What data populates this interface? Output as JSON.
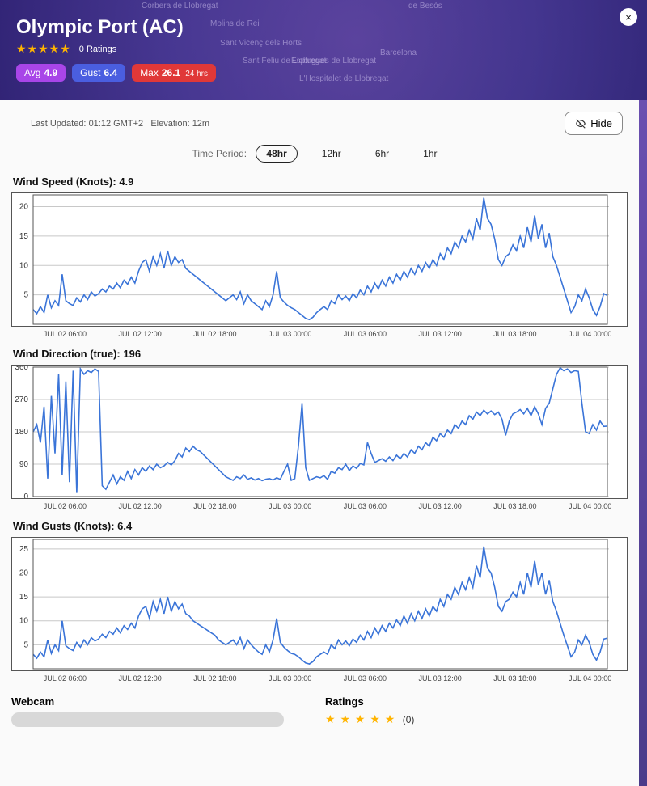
{
  "header": {
    "title": "Olympic Port (AC)",
    "ratings_label": "0 Ratings",
    "stars": 5,
    "close_icon": "×",
    "map_places": [
      "Corbera de Llobregat",
      "Molins de Rei",
      "de Besòs",
      "Sant Vicenç dels Horts",
      "Sant Feliu de Llobregat",
      "Esplugues de Llobregat",
      "Barcelona",
      "L'Hospitalet de Llobregat"
    ],
    "badges": {
      "avg": {
        "label": "Avg",
        "value": "4.9"
      },
      "gust": {
        "label": "Gust",
        "value": "6.4"
      },
      "max": {
        "label": "Max",
        "value": "26.1",
        "suffix": "24 hrs"
      }
    }
  },
  "meta": {
    "last_updated_label": "Last Updated:",
    "last_updated": "01:12 GMT+2",
    "elevation_label": "Elevation:",
    "elevation": "12m",
    "hide_label": "Hide"
  },
  "time_period": {
    "label": "Time Period:",
    "options": [
      "48hr",
      "12hr",
      "6hr",
      "1hr"
    ],
    "active": "48hr"
  },
  "x_axis": {
    "labels": [
      "JUL 02 06:00",
      "JUL 02 12:00",
      "JUL 02 18:00",
      "JUL 03 00:00",
      "JUL 03 06:00",
      "JUL 03 12:00",
      "JUL 03 18:00",
      "JUL 04 00:00"
    ]
  },
  "charts": {
    "line_color": "#3a74d8",
    "grid_color": "#c8c8c8",
    "border_color": "#555555",
    "bg_color": "#ffffff",
    "label_fontsize": 10,
    "title_fontsize": 13,
    "speed": {
      "title": "Wind Speed (Knots): 4.9",
      "ylim": [
        0,
        22
      ],
      "yticks": [
        5,
        10,
        15,
        20
      ],
      "height": 164,
      "data": [
        2.5,
        1.8,
        3.0,
        2.0,
        5.0,
        2.8,
        4.0,
        3.2,
        8.5,
        4.0,
        3.5,
        3.2,
        4.5,
        3.8,
        5.0,
        4.2,
        5.5,
        4.8,
        5.2,
        6.0,
        5.5,
        6.5,
        6.0,
        7.0,
        6.2,
        7.5,
        6.8,
        8.0,
        7.0,
        9.0,
        10.5,
        11.0,
        9.0,
        11.5,
        10.0,
        12.0,
        9.5,
        12.5,
        10.0,
        11.5,
        10.5,
        11.0,
        9.5,
        9.0,
        8.5,
        8.0,
        7.5,
        7.0,
        6.5,
        6.0,
        5.5,
        5.0,
        4.5,
        4.0,
        4.5,
        5.0,
        4.2,
        5.5,
        3.5,
        5.0,
        4.0,
        3.5,
        3.0,
        2.5,
        4.0,
        3.0,
        5.0,
        9.0,
        4.5,
        3.8,
        3.2,
        2.8,
        2.5,
        2.0,
        1.5,
        1.0,
        0.8,
        1.2,
        2.0,
        2.5,
        3.0,
        2.5,
        4.0,
        3.5,
        5.0,
        4.2,
        4.8,
        4.0,
        5.2,
        4.5,
        5.8,
        5.0,
        6.5,
        5.5,
        7.0,
        6.0,
        7.5,
        6.5,
        8.0,
        7.0,
        8.5,
        7.5,
        9.0,
        8.0,
        9.5,
        8.5,
        10.0,
        9.0,
        10.5,
        9.5,
        11.0,
        10.0,
        12.0,
        11.0,
        13.0,
        12.0,
        14.0,
        13.0,
        15.0,
        14.0,
        16.0,
        14.5,
        18.0,
        16.0,
        21.5,
        18.0,
        17.0,
        14.5,
        11.0,
        10.0,
        11.5,
        12.0,
        13.5,
        12.5,
        15.0,
        13.0,
        16.5,
        14.0,
        18.5,
        14.5,
        17.0,
        13.0,
        15.5,
        11.5,
        10.0,
        8.0,
        6.0,
        4.0,
        2.0,
        3.0,
        5.0,
        4.0,
        6.0,
        4.5,
        2.5,
        1.5,
        3.0,
        5.2,
        4.9
      ]
    },
    "direction": {
      "title": "Wind Direction (true): 196",
      "ylim": [
        0,
        360
      ],
      "yticks": [
        0,
        90,
        180,
        270,
        360
      ],
      "height": 164,
      "data": [
        180,
        200,
        150,
        250,
        50,
        280,
        120,
        340,
        60,
        320,
        40,
        350,
        10,
        355,
        340,
        350,
        345,
        355,
        348,
        30,
        20,
        40,
        60,
        35,
        55,
        45,
        70,
        50,
        75,
        60,
        80,
        70,
        85,
        75,
        90,
        80,
        85,
        95,
        88,
        100,
        120,
        110,
        135,
        125,
        140,
        130,
        125,
        115,
        105,
        95,
        85,
        75,
        65,
        55,
        50,
        45,
        55,
        50,
        60,
        48,
        52,
        46,
        50,
        44,
        48,
        50,
        46,
        52,
        48,
        70,
        90,
        45,
        50,
        140,
        260,
        80,
        45,
        50,
        55,
        52,
        58,
        48,
        70,
        65,
        80,
        75,
        90,
        72,
        85,
        78,
        92,
        88,
        150,
        120,
        95,
        100,
        105,
        98,
        110,
        100,
        115,
        105,
        120,
        110,
        130,
        120,
        140,
        130,
        150,
        140,
        165,
        155,
        175,
        165,
        185,
        175,
        200,
        190,
        210,
        200,
        225,
        215,
        235,
        225,
        240,
        230,
        238,
        228,
        235,
        215,
        170,
        210,
        230,
        235,
        242,
        230,
        245,
        225,
        250,
        230,
        200,
        245,
        260,
        300,
        340,
        358,
        350,
        355,
        345,
        350,
        348,
        260,
        180,
        175,
        200,
        185,
        210,
        195,
        196
      ]
    },
    "gusts": {
      "title": "Wind Gusts (Knots): 6.4",
      "ylim": [
        0,
        27
      ],
      "yticks": [
        5,
        10,
        15,
        20,
        25
      ],
      "height": 164,
      "data": [
        3.0,
        2.2,
        3.5,
        2.5,
        6.0,
        3.2,
        5.0,
        3.8,
        10.0,
        4.8,
        4.2,
        3.8,
        5.5,
        4.5,
        6.0,
        5.0,
        6.5,
        5.8,
        6.2,
        7.2,
        6.5,
        7.8,
        7.2,
        8.5,
        7.5,
        9.0,
        8.2,
        9.5,
        8.5,
        11.0,
        12.5,
        13.0,
        10.5,
        14.0,
        12.0,
        14.5,
        11.5,
        15.0,
        12.0,
        14.0,
        12.5,
        13.5,
        11.5,
        11.0,
        10.0,
        9.5,
        9.0,
        8.5,
        8.0,
        7.5,
        7.0,
        6.0,
        5.5,
        5.0,
        5.5,
        6.0,
        5.0,
        6.5,
        4.2,
        6.0,
        5.0,
        4.2,
        3.5,
        3.0,
        5.0,
        3.5,
        6.0,
        10.5,
        5.5,
        4.5,
        3.8,
        3.2,
        3.0,
        2.5,
        1.8,
        1.2,
        1.0,
        1.5,
        2.5,
        3.0,
        3.5,
        3.0,
        5.0,
        4.2,
        6.0,
        5.0,
        5.8,
        4.8,
        6.2,
        5.5,
        7.0,
        6.0,
        7.8,
        6.5,
        8.5,
        7.2,
        9.0,
        7.8,
        9.5,
        8.5,
        10.2,
        9.0,
        11.0,
        9.5,
        11.5,
        10.0,
        12.0,
        10.5,
        12.5,
        11.0,
        13.0,
        12.0,
        14.5,
        13.0,
        15.5,
        14.5,
        17.0,
        15.5,
        18.0,
        16.5,
        19.0,
        17.0,
        21.5,
        19.0,
        25.5,
        21.0,
        20.0,
        17.0,
        13.0,
        12.0,
        14.0,
        14.5,
        16.0,
        15.0,
        18.0,
        15.5,
        20.0,
        17.0,
        22.5,
        17.5,
        20.0,
        15.5,
        18.5,
        14.0,
        12.0,
        9.5,
        7.0,
        4.8,
        2.5,
        3.5,
        6.0,
        5.0,
        7.0,
        5.5,
        3.0,
        1.8,
        3.5,
        6.2,
        6.4
      ]
    }
  },
  "footer": {
    "webcam_label": "Webcam",
    "ratings_label": "Ratings",
    "ratings_count_label": "(0)"
  }
}
